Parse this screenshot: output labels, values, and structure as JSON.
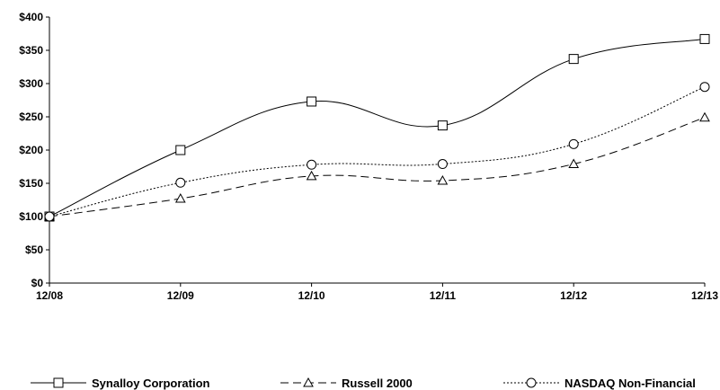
{
  "chart_data": {
    "type": "line",
    "title": "",
    "xlabel": "",
    "ylabel": "",
    "categories": [
      "12/08",
      "12/09",
      "12/10",
      "12/11",
      "12/12",
      "12/13"
    ],
    "ylim": [
      0,
      400
    ],
    "yticks": [
      0,
      50,
      100,
      150,
      200,
      250,
      300,
      350,
      400
    ],
    "ytick_labels": [
      "$0",
      "$50",
      "$100",
      "$150",
      "$200",
      "$250",
      "$300",
      "$350",
      "$400"
    ],
    "grid": false,
    "legend_position": "bottom",
    "series": [
      {
        "name": "Synalloy Corporation",
        "values": [
          100,
          200,
          273,
          237,
          337,
          367
        ],
        "marker": "square",
        "line_style": "solid",
        "color": "#000000"
      },
      {
        "name": "Russell 2000",
        "values": [
          100,
          127,
          161,
          154,
          179,
          249
        ],
        "marker": "triangle",
        "line_style": "dashed",
        "color": "#000000"
      },
      {
        "name": "NASDAQ Non-Financial",
        "values": [
          100,
          151,
          178,
          179,
          209,
          295
        ],
        "marker": "circle",
        "line_style": "dotted",
        "color": "#000000"
      }
    ]
  }
}
